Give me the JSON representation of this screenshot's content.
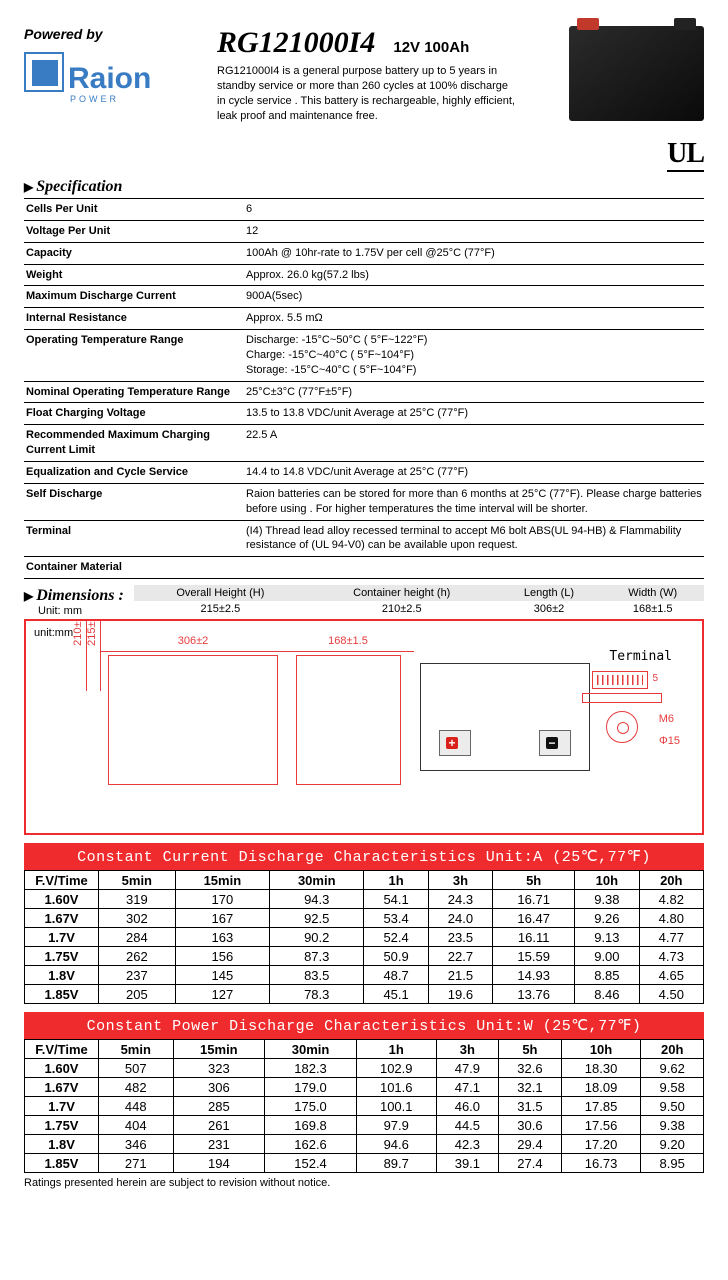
{
  "header": {
    "powered_by": "Powered by",
    "brand_main": "Raion",
    "brand_sub": "POWER",
    "model": "RG121000I4",
    "rating": "12V 100Ah",
    "description": "RG121000I4 is a general purpose battery up to 5 years in standby service or more than 260 cycles at 100% discharge in cycle service . This battery is rechargeable, highly efficient, leak proof and maintenance free.",
    "ul_mark": "UL"
  },
  "spec_heading": "Specification",
  "spec_rows": [
    {
      "label": "Cells Per Unit",
      "value": "6"
    },
    {
      "label": "Voltage Per Unit",
      "value": "12"
    },
    {
      "label": "Capacity",
      "value": "100Ah @ 10hr-rate to 1.75V per cell @25°C (77°F)"
    },
    {
      "label": "Weight",
      "value": "Approx. 26.0 kg(57.2 lbs)"
    },
    {
      "label": "Maximum Discharge Current",
      "value": "900A(5sec)"
    },
    {
      "label": "Internal Resistance",
      "value": "Approx. 5.5 mΩ"
    },
    {
      "label": "Operating Temperature Range",
      "value": "Discharge: -15°C~50°C ( 5°F~122°F)\nCharge: -15°C~40°C ( 5°F~104°F)\nStorage: -15°C~40°C ( 5°F~104°F)"
    },
    {
      "label": "Nominal Operating Temperature Range",
      "value": "25°C±3°C (77°F±5°F)"
    },
    {
      "label": "Float Charging Voltage",
      "value": "13.5 to 13.8 VDC/unit Average at 25°C (77°F)"
    },
    {
      "label": "Recommended Maximum Charging Current Limit",
      "value": "22.5 A"
    },
    {
      "label": "Equalization and Cycle Service",
      "value": "14.4 to 14.8 VDC/unit Average at 25°C (77°F)"
    },
    {
      "label": "Self Discharge",
      "value": "Raion batteries can be stored for more than 6 months at 25°C (77°F). Please charge batteries before using . For higher temperatures the time interval will be shorter."
    },
    {
      "label": "Terminal",
      "value": "(I4) Thread lead alloy recessed terminal to accept M6 bolt ABS(UL 94-HB)  &  Flammability resistance of (UL 94-V0) can be available upon request."
    },
    {
      "label": "Container Material",
      "value": ""
    }
  ],
  "dimensions": {
    "heading": "Dimensions :",
    "unit_label": "Unit: mm",
    "cols": [
      {
        "name": "Overall Height (H)",
        "val": "215±2.5"
      },
      {
        "name": "Container height (h)",
        "val": "210±2.5"
      },
      {
        "name": "Length (L)",
        "val": "306±2"
      },
      {
        "name": "Width (W)",
        "val": "168±1.5"
      }
    ],
    "diagram_unit": "unit:mm",
    "dim_306": "306±2",
    "dim_168": "168±1.5",
    "dim_210": "210±2.5",
    "dim_215": "215±2.5",
    "terminal_label": "Terminal",
    "m6": "M6",
    "phi15": "Φ15",
    "five": "5"
  },
  "discharge_current": {
    "title": "Constant Current Discharge Characteristics   Unit:A (25℃,77℉)",
    "headers": [
      "F.V/Time",
      "5min",
      "15min",
      "30min",
      "1h",
      "3h",
      "5h",
      "10h",
      "20h"
    ],
    "rows": [
      [
        "1.60V",
        "319",
        "170",
        "94.3",
        "54.1",
        "24.3",
        "16.71",
        "9.38",
        "4.82"
      ],
      [
        "1.67V",
        "302",
        "167",
        "92.5",
        "53.4",
        "24.0",
        "16.47",
        "9.26",
        "4.80"
      ],
      [
        "1.7V",
        "284",
        "163",
        "90.2",
        "52.4",
        "23.5",
        "16.11",
        "9.13",
        "4.77"
      ],
      [
        "1.75V",
        "262",
        "156",
        "87.3",
        "50.9",
        "22.7",
        "15.59",
        "9.00",
        "4.73"
      ],
      [
        "1.8V",
        "237",
        "145",
        "83.5",
        "48.7",
        "21.5",
        "14.93",
        "8.85",
        "4.65"
      ],
      [
        "1.85V",
        "205",
        "127",
        "78.3",
        "45.1",
        "19.6",
        "13.76",
        "8.46",
        "4.50"
      ]
    ]
  },
  "discharge_power": {
    "title": "Constant Power Discharge Characteristics    Unit:W (25℃,77℉)",
    "headers": [
      "F.V/Time",
      "5min",
      "15min",
      "30min",
      "1h",
      "3h",
      "5h",
      "10h",
      "20h"
    ],
    "rows": [
      [
        "1.60V",
        "507",
        "323",
        "182.3",
        "102.9",
        "47.9",
        "32.6",
        "18.30",
        "9.62"
      ],
      [
        "1.67V",
        "482",
        "306",
        "179.0",
        "101.6",
        "47.1",
        "32.1",
        "18.09",
        "9.58"
      ],
      [
        "1.7V",
        "448",
        "285",
        "175.0",
        "100.1",
        "46.0",
        "31.5",
        "17.85",
        "9.50"
      ],
      [
        "1.75V",
        "404",
        "261",
        "169.8",
        "97.9",
        "44.5",
        "30.6",
        "17.56",
        "9.38"
      ],
      [
        "1.8V",
        "346",
        "231",
        "162.6",
        "94.6",
        "42.3",
        "29.4",
        "17.20",
        "9.20"
      ],
      [
        "1.85V",
        "271",
        "194",
        "152.4",
        "89.7",
        "39.1",
        "27.4",
        "16.73",
        "8.95"
      ]
    ]
  },
  "footer": "Ratings presented herein are subject to revision without notice.",
  "colors": {
    "accent_red": "#ef2b2d",
    "brand_blue": "#3a7cc4",
    "diagram_red": "#e63b3d"
  }
}
